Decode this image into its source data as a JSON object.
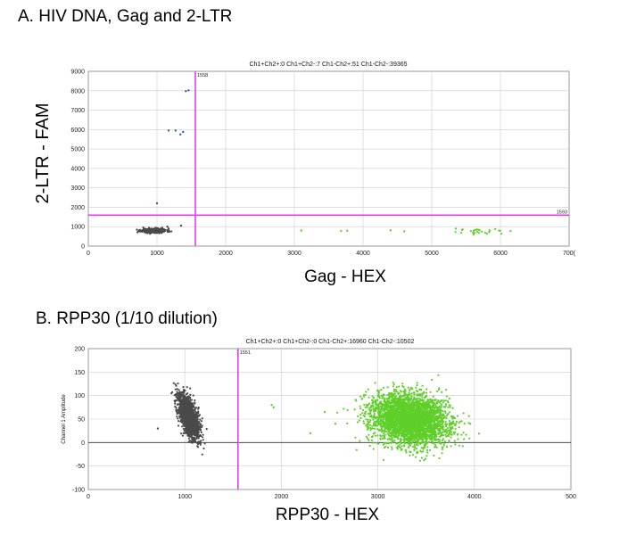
{
  "headings": {
    "a": "A. HIV DNA, Gag and 2-LTR",
    "b": "B. RPP30 (1/10 dilution)"
  },
  "colors": {
    "negative": "#4a4a4a",
    "hex_positive": "#5fcf2a",
    "fam_positive": "#2f5fc0",
    "threshold": "#e040e0",
    "grid": "#cccccc"
  },
  "chart_data": [
    {
      "type": "scatter",
      "panel": "A",
      "header": "Ch1+Ch2+:0  Ch1+Ch2-:7  Ch1-Ch2+:51  Ch1-Ch2-:39365",
      "xlabel": "Gag - HEX",
      "ylabel": "2-LTR - FAM",
      "xlim": [
        0,
        7000
      ],
      "ylim": [
        0,
        9000
      ],
      "xticks": [
        "0",
        "1000",
        "2000",
        "3000",
        "4000",
        "5000",
        "6000",
        "700("
      ],
      "yticks": [
        "0",
        "1000",
        "2000",
        "3000",
        "4000",
        "5000",
        "6000",
        "7000",
        "8000",
        "9000"
      ],
      "threshold_x": 1558,
      "threshold_y": 1593,
      "threshold_x_label": "1558",
      "threshold_y_label": "1593",
      "clusters": [
        {
          "name": "Ch1-Ch2-",
          "color": "negative",
          "n": 450,
          "cx": 960,
          "cy": 800,
          "sx": 90,
          "sy": 55,
          "seed": 11
        },
        {
          "name": "Ch1-Ch2+",
          "color": "hex_positive",
          "n": 28,
          "cx": 5780,
          "cy": 740,
          "sx": 160,
          "sy": 60,
          "seed": 23
        }
      ],
      "points": [
        {
          "x": 1420,
          "y": 7980,
          "c": "fam_positive"
        },
        {
          "x": 1460,
          "y": 8020,
          "c": "fam_positive"
        },
        {
          "x": 1170,
          "y": 5950,
          "c": "fam_positive"
        },
        {
          "x": 1270,
          "y": 5950,
          "c": "fam_positive"
        },
        {
          "x": 1340,
          "y": 5750,
          "c": "fam_positive"
        },
        {
          "x": 1380,
          "y": 5880,
          "c": "fam_positive"
        },
        {
          "x": 1000,
          "y": 2200,
          "c": "fam_positive"
        },
        {
          "x": 1350,
          "y": 1050,
          "c": "negative"
        },
        {
          "x": 1150,
          "y": 1000,
          "c": "negative"
        },
        {
          "x": 3100,
          "y": 800,
          "c": "hex_positive"
        },
        {
          "x": 3680,
          "y": 780,
          "c": "hex_positive"
        },
        {
          "x": 3770,
          "y": 790,
          "c": "hex_positive"
        },
        {
          "x": 4400,
          "y": 810,
          "c": "hex_positive"
        },
        {
          "x": 4600,
          "y": 760,
          "c": "hex_positive"
        },
        {
          "x": 5350,
          "y": 900,
          "c": "hex_positive"
        },
        {
          "x": 5450,
          "y": 860,
          "c": "hex_positive"
        }
      ]
    },
    {
      "type": "scatter",
      "panel": "B",
      "header": "Ch1+Ch2+:0  Ch1+Ch2-:0  Ch1-Ch2+:16960  Ch1-Ch2-:10502",
      "xlabel": "RPP30 - HEX",
      "ylabel": "Channel 1 Amplitude",
      "xlim": [
        0,
        5000
      ],
      "ylim": [
        -100,
        200
      ],
      "xticks": [
        "0",
        "1000",
        "2000",
        "3000",
        "4000",
        "500"
      ],
      "yticks": [
        "-100",
        "-50",
        "0",
        "50",
        "100",
        "150",
        "200"
      ],
      "threshold_x": 1551,
      "threshold_x_label": "1551",
      "zero_line": 0,
      "clusters": [
        {
          "name": "Ch1-Ch2-",
          "color": "negative",
          "n": 1400,
          "cx": 1040,
          "cy": 55,
          "sx": 55,
          "sy": 24,
          "rho": -0.6,
          "seed": 37
        },
        {
          "name": "Ch1-Ch2+",
          "color": "hex_positive",
          "n": 3600,
          "cx": 3340,
          "cy": 50,
          "sx": 200,
          "sy": 27,
          "rho": -0.15,
          "seed": 53
        }
      ],
      "points": [
        {
          "x": 720,
          "y": 30,
          "c": "negative"
        },
        {
          "x": 1900,
          "y": 80,
          "c": "hex_positive"
        },
        {
          "x": 1920,
          "y": 75,
          "c": "hex_positive"
        },
        {
          "x": 2300,
          "y": 20,
          "c": "hex_positive"
        },
        {
          "x": 2450,
          "y": 65,
          "c": "hex_positive"
        },
        {
          "x": 2560,
          "y": 40,
          "c": "hex_positive"
        }
      ]
    }
  ]
}
